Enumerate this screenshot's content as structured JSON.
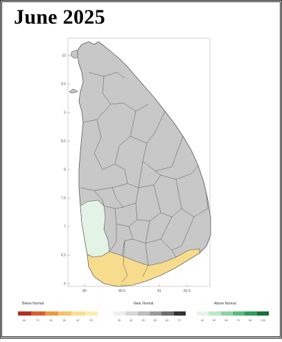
{
  "title": "June 2025",
  "map": {
    "country_fill": "#c8c8c8",
    "border_color": "#555555",
    "below_normal_color": "#f6dc8c",
    "above_normal_color": "#e3f3e6",
    "lat_ticks": [
      "10",
      "9.5",
      "9",
      "8.5",
      "8",
      "7.5",
      "7",
      "6.5",
      "6"
    ],
    "lon_ticks": [
      "80",
      "80.5",
      "81",
      "81.5"
    ]
  },
  "legend": {
    "below": {
      "label": "Below Normal",
      "ticks": [
        "80",
        "70",
        "60",
        "50",
        "40",
        "35"
      ],
      "colors": [
        "#b3311f",
        "#d9602b",
        "#ec9a3f",
        "#f4c46a",
        "#f8e08f",
        "#fbefb5"
      ]
    },
    "near": {
      "label": "Near Normal",
      "ticks": [
        "35",
        "40",
        "45",
        "50",
        "60",
        "70"
      ],
      "colors": [
        "#efefef",
        "#d7d7d7",
        "#bdbdbd",
        "#9c9c9c",
        "#6e6e6e",
        "#333333"
      ]
    },
    "above": {
      "label": "Above Normal",
      "ticks": [
        "40",
        "50",
        "60",
        "70",
        "80",
        "100"
      ],
      "colors": [
        "#e6f5ea",
        "#bfe6cb",
        "#8fd3a6",
        "#58bd7d",
        "#2e9e58",
        "#17703a"
      ]
    }
  }
}
